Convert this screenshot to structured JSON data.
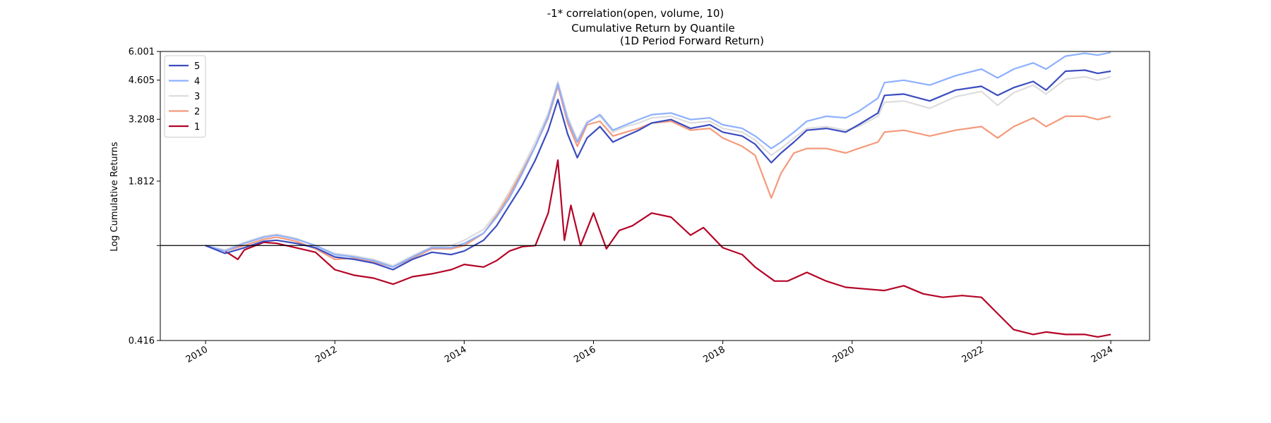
{
  "chart_data": {
    "type": "line",
    "suptitle": "-1* correlation(open, volume, 10)",
    "title": "Cumulative Return by Quantile",
    "subtitle": "(1D Period Forward Return)",
    "ylabel": "Log Cumulative Returns",
    "xlabel": "",
    "y_scale": "log",
    "ylim": [
      0.416,
      6.001
    ],
    "y_ticks": [
      0.416,
      1.0,
      1.812,
      3.208,
      4.605,
      6.001
    ],
    "y_tick_labels": [
      "0.416",
      "",
      "1.812",
      "3.208",
      "4.605",
      "6.001"
    ],
    "x_ticks": [
      "2010",
      "2012",
      "2014",
      "2016",
      "2018",
      "2020",
      "2022",
      "2024"
    ],
    "xlim": [
      2009.3,
      2024.6
    ],
    "baseline": 1.0,
    "legend_position": "upper-left",
    "grid": false,
    "series": [
      {
        "name": "5",
        "color": "#3b4cc0",
        "points": [
          [
            2010.0,
            1.0
          ],
          [
            2010.3,
            0.93
          ],
          [
            2010.6,
            0.98
          ],
          [
            2010.9,
            1.04
          ],
          [
            2011.1,
            1.05
          ],
          [
            2011.4,
            1.02
          ],
          [
            2011.7,
            0.98
          ],
          [
            2012.0,
            0.9
          ],
          [
            2012.3,
            0.88
          ],
          [
            2012.6,
            0.85
          ],
          [
            2012.9,
            0.8
          ],
          [
            2013.2,
            0.88
          ],
          [
            2013.5,
            0.94
          ],
          [
            2013.8,
            0.92
          ],
          [
            2014.0,
            0.95
          ],
          [
            2014.3,
            1.05
          ],
          [
            2014.5,
            1.2
          ],
          [
            2014.7,
            1.45
          ],
          [
            2014.9,
            1.75
          ],
          [
            2015.1,
            2.2
          ],
          [
            2015.3,
            2.9
          ],
          [
            2015.45,
            3.85
          ],
          [
            2015.6,
            2.8
          ],
          [
            2015.75,
            2.25
          ],
          [
            2015.9,
            2.7
          ],
          [
            2016.1,
            3.0
          ],
          [
            2016.3,
            2.6
          ],
          [
            2016.5,
            2.75
          ],
          [
            2016.7,
            2.9
          ],
          [
            2016.9,
            3.1
          ],
          [
            2017.2,
            3.2
          ],
          [
            2017.5,
            2.95
          ],
          [
            2017.8,
            3.05
          ],
          [
            2018.0,
            2.85
          ],
          [
            2018.3,
            2.75
          ],
          [
            2018.5,
            2.55
          ],
          [
            2018.75,
            2.15
          ],
          [
            2018.9,
            2.35
          ],
          [
            2019.1,
            2.6
          ],
          [
            2019.3,
            2.9
          ],
          [
            2019.6,
            2.95
          ],
          [
            2019.9,
            2.85
          ],
          [
            2020.1,
            3.05
          ],
          [
            2020.4,
            3.4
          ],
          [
            2020.5,
            4.0
          ],
          [
            2020.8,
            4.05
          ],
          [
            2021.2,
            3.8
          ],
          [
            2021.6,
            4.2
          ],
          [
            2022.0,
            4.35
          ],
          [
            2022.25,
            4.0
          ],
          [
            2022.5,
            4.3
          ],
          [
            2022.8,
            4.55
          ],
          [
            2023.0,
            4.2
          ],
          [
            2023.3,
            5.0
          ],
          [
            2023.6,
            5.05
          ],
          [
            2023.8,
            4.9
          ],
          [
            2024.0,
            5.0
          ]
        ]
      },
      {
        "name": "4",
        "color": "#8db0fe",
        "points": [
          [
            2010.0,
            1.0
          ],
          [
            2010.3,
            0.95
          ],
          [
            2010.6,
            1.02
          ],
          [
            2010.9,
            1.08
          ],
          [
            2011.1,
            1.1
          ],
          [
            2011.4,
            1.06
          ],
          [
            2011.7,
            1.0
          ],
          [
            2012.0,
            0.92
          ],
          [
            2012.3,
            0.9
          ],
          [
            2012.6,
            0.87
          ],
          [
            2012.9,
            0.82
          ],
          [
            2013.2,
            0.9
          ],
          [
            2013.5,
            0.98
          ],
          [
            2013.8,
            0.98
          ],
          [
            2014.0,
            1.02
          ],
          [
            2014.3,
            1.12
          ],
          [
            2014.5,
            1.3
          ],
          [
            2014.7,
            1.55
          ],
          [
            2014.9,
            1.95
          ],
          [
            2015.1,
            2.5
          ],
          [
            2015.3,
            3.3
          ],
          [
            2015.45,
            4.45
          ],
          [
            2015.6,
            3.2
          ],
          [
            2015.75,
            2.6
          ],
          [
            2015.9,
            3.1
          ],
          [
            2016.1,
            3.35
          ],
          [
            2016.3,
            2.9
          ],
          [
            2016.5,
            3.05
          ],
          [
            2016.7,
            3.2
          ],
          [
            2016.9,
            3.35
          ],
          [
            2017.2,
            3.4
          ],
          [
            2017.5,
            3.2
          ],
          [
            2017.8,
            3.25
          ],
          [
            2018.0,
            3.05
          ],
          [
            2018.3,
            2.95
          ],
          [
            2018.5,
            2.75
          ],
          [
            2018.75,
            2.45
          ],
          [
            2018.9,
            2.6
          ],
          [
            2019.1,
            2.85
          ],
          [
            2019.3,
            3.15
          ],
          [
            2019.6,
            3.3
          ],
          [
            2019.9,
            3.25
          ],
          [
            2020.1,
            3.45
          ],
          [
            2020.4,
            3.9
          ],
          [
            2020.5,
            4.5
          ],
          [
            2020.8,
            4.6
          ],
          [
            2021.2,
            4.4
          ],
          [
            2021.6,
            4.8
          ],
          [
            2022.0,
            5.1
          ],
          [
            2022.25,
            4.7
          ],
          [
            2022.5,
            5.1
          ],
          [
            2022.8,
            5.4
          ],
          [
            2023.0,
            5.1
          ],
          [
            2023.3,
            5.75
          ],
          [
            2023.6,
            5.9
          ],
          [
            2023.8,
            5.8
          ],
          [
            2024.0,
            5.95
          ]
        ]
      },
      {
        "name": "3",
        "color": "#dddddd",
        "points": [
          [
            2010.0,
            1.0
          ],
          [
            2010.3,
            0.96
          ],
          [
            2010.6,
            1.03
          ],
          [
            2010.9,
            1.09
          ],
          [
            2011.1,
            1.11
          ],
          [
            2011.4,
            1.07
          ],
          [
            2011.7,
            1.0
          ],
          [
            2012.0,
            0.93
          ],
          [
            2012.3,
            0.91
          ],
          [
            2012.6,
            0.88
          ],
          [
            2012.9,
            0.83
          ],
          [
            2013.2,
            0.91
          ],
          [
            2013.5,
            0.99
          ],
          [
            2013.8,
            1.0
          ],
          [
            2014.0,
            1.05
          ],
          [
            2014.3,
            1.16
          ],
          [
            2014.5,
            1.35
          ],
          [
            2014.7,
            1.65
          ],
          [
            2014.9,
            2.05
          ],
          [
            2015.1,
            2.6
          ],
          [
            2015.3,
            3.4
          ],
          [
            2015.45,
            4.55
          ],
          [
            2015.6,
            3.3
          ],
          [
            2015.75,
            2.65
          ],
          [
            2015.9,
            3.15
          ],
          [
            2016.1,
            3.3
          ],
          [
            2016.3,
            2.85
          ],
          [
            2016.5,
            3.0
          ],
          [
            2016.7,
            3.1
          ],
          [
            2016.9,
            3.25
          ],
          [
            2017.2,
            3.3
          ],
          [
            2017.5,
            3.1
          ],
          [
            2017.8,
            3.15
          ],
          [
            2018.0,
            2.95
          ],
          [
            2018.3,
            2.85
          ],
          [
            2018.5,
            2.65
          ],
          [
            2018.75,
            2.3
          ],
          [
            2018.9,
            2.45
          ],
          [
            2019.1,
            2.7
          ],
          [
            2019.3,
            2.95
          ],
          [
            2019.6,
            3.0
          ],
          [
            2019.9,
            2.9
          ],
          [
            2020.1,
            3.0
          ],
          [
            2020.4,
            3.3
          ],
          [
            2020.5,
            3.75
          ],
          [
            2020.8,
            3.8
          ],
          [
            2021.2,
            3.55
          ],
          [
            2021.6,
            3.95
          ],
          [
            2022.0,
            4.15
          ],
          [
            2022.25,
            3.65
          ],
          [
            2022.5,
            4.1
          ],
          [
            2022.8,
            4.4
          ],
          [
            2023.0,
            4.05
          ],
          [
            2023.3,
            4.65
          ],
          [
            2023.6,
            4.75
          ],
          [
            2023.8,
            4.6
          ],
          [
            2024.0,
            4.75
          ]
        ]
      },
      {
        "name": "2",
        "color": "#f49a7b",
        "points": [
          [
            2010.0,
            1.0
          ],
          [
            2010.3,
            0.95
          ],
          [
            2010.6,
            1.0
          ],
          [
            2010.9,
            1.06
          ],
          [
            2011.1,
            1.08
          ],
          [
            2011.4,
            1.04
          ],
          [
            2011.7,
            0.97
          ],
          [
            2012.0,
            0.88
          ],
          [
            2012.3,
            0.89
          ],
          [
            2012.6,
            0.86
          ],
          [
            2012.9,
            0.82
          ],
          [
            2013.2,
            0.89
          ],
          [
            2013.5,
            0.97
          ],
          [
            2013.8,
            0.97
          ],
          [
            2014.0,
            1.0
          ],
          [
            2014.3,
            1.12
          ],
          [
            2014.5,
            1.32
          ],
          [
            2014.7,
            1.6
          ],
          [
            2014.9,
            2.0
          ],
          [
            2015.1,
            2.5
          ],
          [
            2015.3,
            3.25
          ],
          [
            2015.45,
            4.35
          ],
          [
            2015.6,
            3.1
          ],
          [
            2015.75,
            2.5
          ],
          [
            2015.9,
            3.05
          ],
          [
            2016.1,
            3.15
          ],
          [
            2016.3,
            2.75
          ],
          [
            2016.5,
            2.85
          ],
          [
            2016.7,
            2.95
          ],
          [
            2016.9,
            3.1
          ],
          [
            2017.2,
            3.15
          ],
          [
            2017.5,
            2.9
          ],
          [
            2017.8,
            2.95
          ],
          [
            2018.0,
            2.7
          ],
          [
            2018.3,
            2.5
          ],
          [
            2018.5,
            2.3
          ],
          [
            2018.75,
            1.55
          ],
          [
            2018.9,
            1.95
          ],
          [
            2019.1,
            2.35
          ],
          [
            2019.3,
            2.45
          ],
          [
            2019.6,
            2.45
          ],
          [
            2019.9,
            2.35
          ],
          [
            2020.1,
            2.45
          ],
          [
            2020.4,
            2.6
          ],
          [
            2020.5,
            2.85
          ],
          [
            2020.8,
            2.9
          ],
          [
            2021.2,
            2.75
          ],
          [
            2021.6,
            2.9
          ],
          [
            2022.0,
            3.0
          ],
          [
            2022.25,
            2.7
          ],
          [
            2022.5,
            3.0
          ],
          [
            2022.8,
            3.25
          ],
          [
            2023.0,
            3.0
          ],
          [
            2023.3,
            3.3
          ],
          [
            2023.6,
            3.3
          ],
          [
            2023.8,
            3.2
          ],
          [
            2024.0,
            3.3
          ]
        ]
      },
      {
        "name": "1",
        "color": "#b40426",
        "points": [
          [
            2010.0,
            1.0
          ],
          [
            2010.3,
            0.95
          ],
          [
            2010.5,
            0.88
          ],
          [
            2010.6,
            0.96
          ],
          [
            2010.9,
            1.03
          ],
          [
            2011.1,
            1.02
          ],
          [
            2011.4,
            0.98
          ],
          [
            2011.7,
            0.94
          ],
          [
            2012.0,
            0.8
          ],
          [
            2012.3,
            0.76
          ],
          [
            2012.6,
            0.74
          ],
          [
            2012.9,
            0.7
          ],
          [
            2013.2,
            0.75
          ],
          [
            2013.5,
            0.77
          ],
          [
            2013.8,
            0.8
          ],
          [
            2014.0,
            0.84
          ],
          [
            2014.3,
            0.82
          ],
          [
            2014.5,
            0.87
          ],
          [
            2014.7,
            0.95
          ],
          [
            2014.9,
            0.99
          ],
          [
            2015.1,
            1.0
          ],
          [
            2015.3,
            1.35
          ],
          [
            2015.45,
            2.2
          ],
          [
            2015.55,
            1.05
          ],
          [
            2015.65,
            1.45
          ],
          [
            2015.8,
            1.0
          ],
          [
            2016.0,
            1.35
          ],
          [
            2016.2,
            0.97
          ],
          [
            2016.4,
            1.15
          ],
          [
            2016.6,
            1.2
          ],
          [
            2016.9,
            1.35
          ],
          [
            2017.2,
            1.3
          ],
          [
            2017.5,
            1.1
          ],
          [
            2017.7,
            1.18
          ],
          [
            2018.0,
            0.98
          ],
          [
            2018.3,
            0.92
          ],
          [
            2018.5,
            0.82
          ],
          [
            2018.8,
            0.72
          ],
          [
            2019.0,
            0.72
          ],
          [
            2019.3,
            0.78
          ],
          [
            2019.6,
            0.72
          ],
          [
            2019.9,
            0.68
          ],
          [
            2020.2,
            0.67
          ],
          [
            2020.5,
            0.66
          ],
          [
            2020.8,
            0.69
          ],
          [
            2021.1,
            0.64
          ],
          [
            2021.4,
            0.62
          ],
          [
            2021.7,
            0.63
          ],
          [
            2022.0,
            0.62
          ],
          [
            2022.2,
            0.55
          ],
          [
            2022.5,
            0.46
          ],
          [
            2022.8,
            0.44
          ],
          [
            2023.0,
            0.45
          ],
          [
            2023.3,
            0.44
          ],
          [
            2023.6,
            0.44
          ],
          [
            2023.8,
            0.43
          ],
          [
            2024.0,
            0.44
          ]
        ]
      }
    ]
  }
}
